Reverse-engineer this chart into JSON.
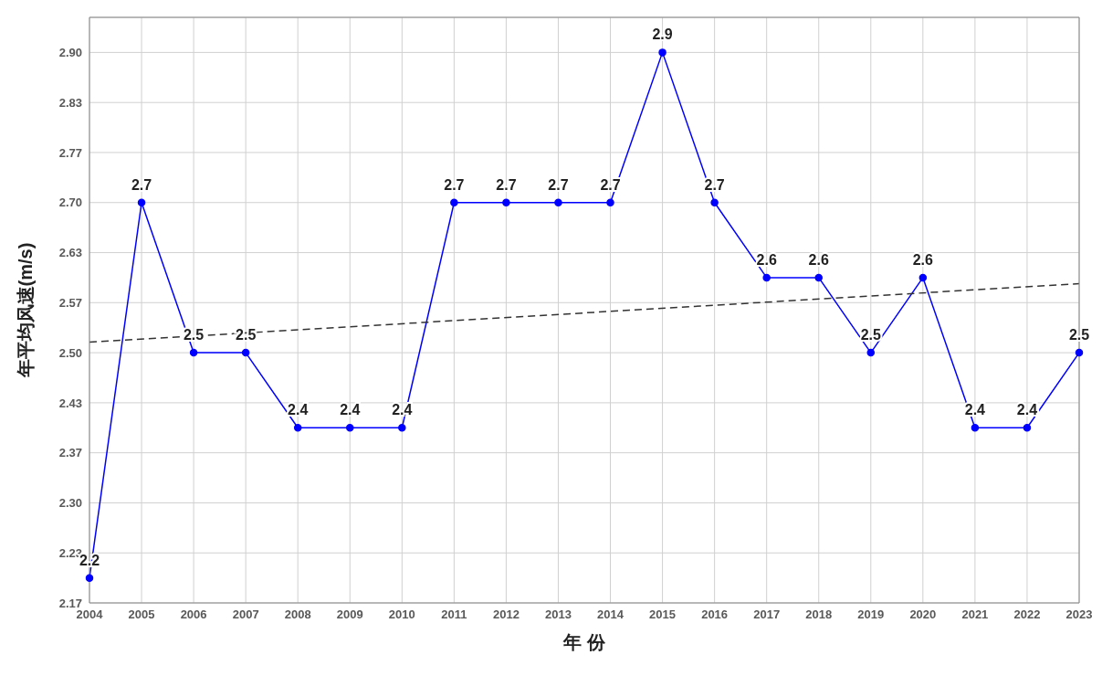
{
  "chart_data": {
    "type": "line",
    "xlabel": "年 份",
    "ylabel": "年平均风速(m/s)",
    "categories": [
      "2004",
      "2005",
      "2006",
      "2007",
      "2008",
      "2009",
      "2010",
      "2011",
      "2012",
      "2013",
      "2014",
      "2015",
      "2016",
      "2017",
      "2018",
      "2019",
      "2020",
      "2021",
      "2022",
      "2023"
    ],
    "series": [
      {
        "color": "#0000ff",
        "values": [
          2.2,
          2.7,
          2.5,
          2.5,
          2.4,
          2.4,
          2.4,
          2.7,
          2.7,
          2.7,
          2.7,
          2.9,
          2.7,
          2.6,
          2.6,
          2.5,
          2.6,
          2.4,
          2.4,
          2.5
        ],
        "value_labels": [
          "2.2",
          "2.7",
          "2.5",
          "2.5",
          "2.4",
          "2.4",
          "2.4",
          "2.7",
          "2.7",
          "2.7",
          "2.7",
          "2.9",
          "2.7",
          "2.6",
          "2.6",
          "2.5",
          "2.6",
          "2.4",
          "2.4",
          "2.5"
        ],
        "marker": "circle",
        "line_style": "solid"
      },
      {
        "color": "#333333",
        "values": [
          2.514,
          null,
          null,
          null,
          null,
          null,
          null,
          null,
          null,
          null,
          null,
          null,
          null,
          null,
          null,
          null,
          null,
          null,
          null,
          2.592
        ],
        "marker": "none",
        "line_style": "dashed"
      }
    ],
    "ylim": [
      2.1667,
      2.9467
    ],
    "yticks": [
      {
        "value": 2.1667,
        "label": "2.17"
      },
      {
        "value": 2.2333,
        "label": "2.23"
      },
      {
        "value": 2.3,
        "label": "2.30"
      },
      {
        "value": 2.3667,
        "label": "2.37"
      },
      {
        "value": 2.4333,
        "label": "2.43"
      },
      {
        "value": 2.5,
        "label": "2.50"
      },
      {
        "value": 2.5667,
        "label": "2.57"
      },
      {
        "value": 2.6333,
        "label": "2.63"
      },
      {
        "value": 2.7,
        "label": "2.70"
      },
      {
        "value": 2.7667,
        "label": "2.77"
      },
      {
        "value": 2.8333,
        "label": "2.83"
      },
      {
        "value": 2.9,
        "label": "2.90"
      }
    ],
    "grid": true,
    "legend": false
  }
}
